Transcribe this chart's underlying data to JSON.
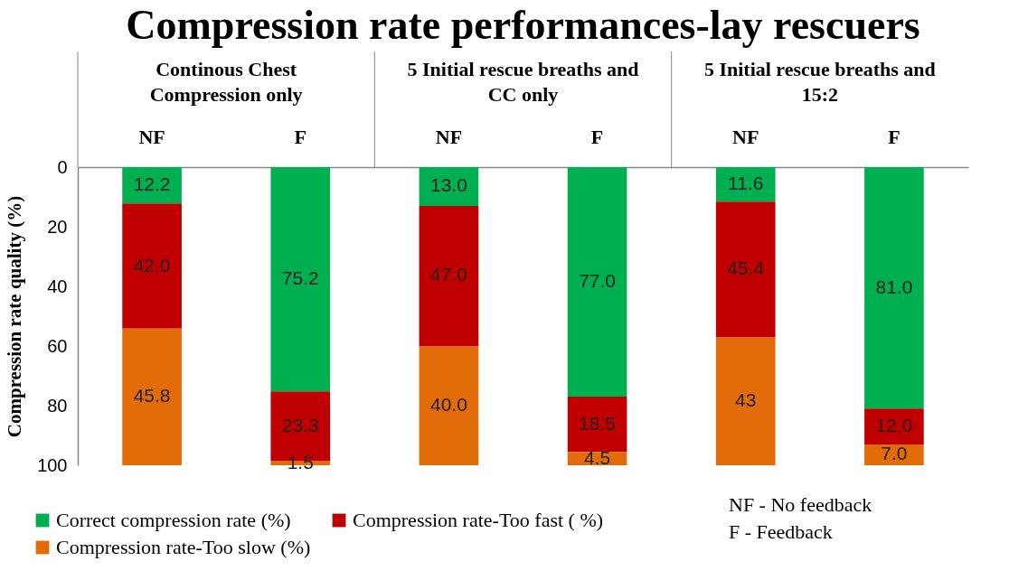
{
  "chart_data": {
    "type": "bar",
    "stacked": true,
    "title": "Compression rate performances-lay rescuers",
    "ylabel": "Compression rate quality (%)",
    "categories": [
      "NF",
      "F",
      "NF",
      "F",
      "NF",
      "F"
    ],
    "series": [
      {
        "name": "Correct compression rate (%)",
        "color": "#00b050",
        "values": [
          12.2,
          75.2,
          13.0,
          77.0,
          11.6,
          81.0
        ],
        "value_labels": [
          "12.2",
          "75.2",
          "13.0",
          "77.0",
          "11.6",
          "81.0"
        ]
      },
      {
        "name": "Compression rate-Too fast ( %)",
        "color": "#c00000",
        "values": [
          42.0,
          23.3,
          47.0,
          18.5,
          45.4,
          12.0
        ],
        "value_labels": [
          "42.0",
          "23.3",
          "47.0",
          "18.5",
          "45.4",
          "12.0"
        ]
      },
      {
        "name": "Compression rate-Too slow (%)",
        "color": "#e36c0a",
        "values": [
          45.8,
          1.5,
          40.0,
          4.5,
          43,
          7.0
        ],
        "value_labels": [
          "45.8",
          "1.5",
          "40.0",
          "4.5",
          "43",
          "7.0"
        ]
      }
    ],
    "ylim": [
      100,
      0
    ],
    "yticks": [
      0,
      20,
      40,
      60,
      80,
      100
    ],
    "grid": false,
    "legend": "bottom",
    "annotations": [
      "Continous Chest\nCompression only",
      "5 Initial rescue breaths and\nCC only",
      "5 Initial rescue breaths and\n15:2",
      "NF - No feedback\nF - Feedback"
    ]
  }
}
